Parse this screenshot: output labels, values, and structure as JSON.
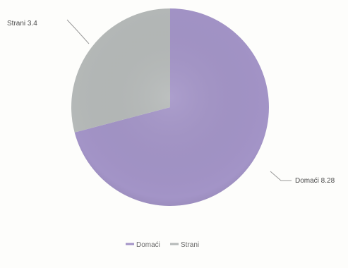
{
  "chart_data": {
    "type": "pie",
    "title": "",
    "slices": [
      {
        "name": "Domaći",
        "value": 8.28,
        "label": "Domaći 8.28",
        "color": "#a394c7"
      },
      {
        "name": "Strani",
        "value": 3.4,
        "label": "Strani 3.4",
        "color": "#b5b9b8"
      }
    ],
    "legend": {
      "placement": "bottom",
      "entries": [
        "Domaći",
        "Strani"
      ]
    }
  }
}
